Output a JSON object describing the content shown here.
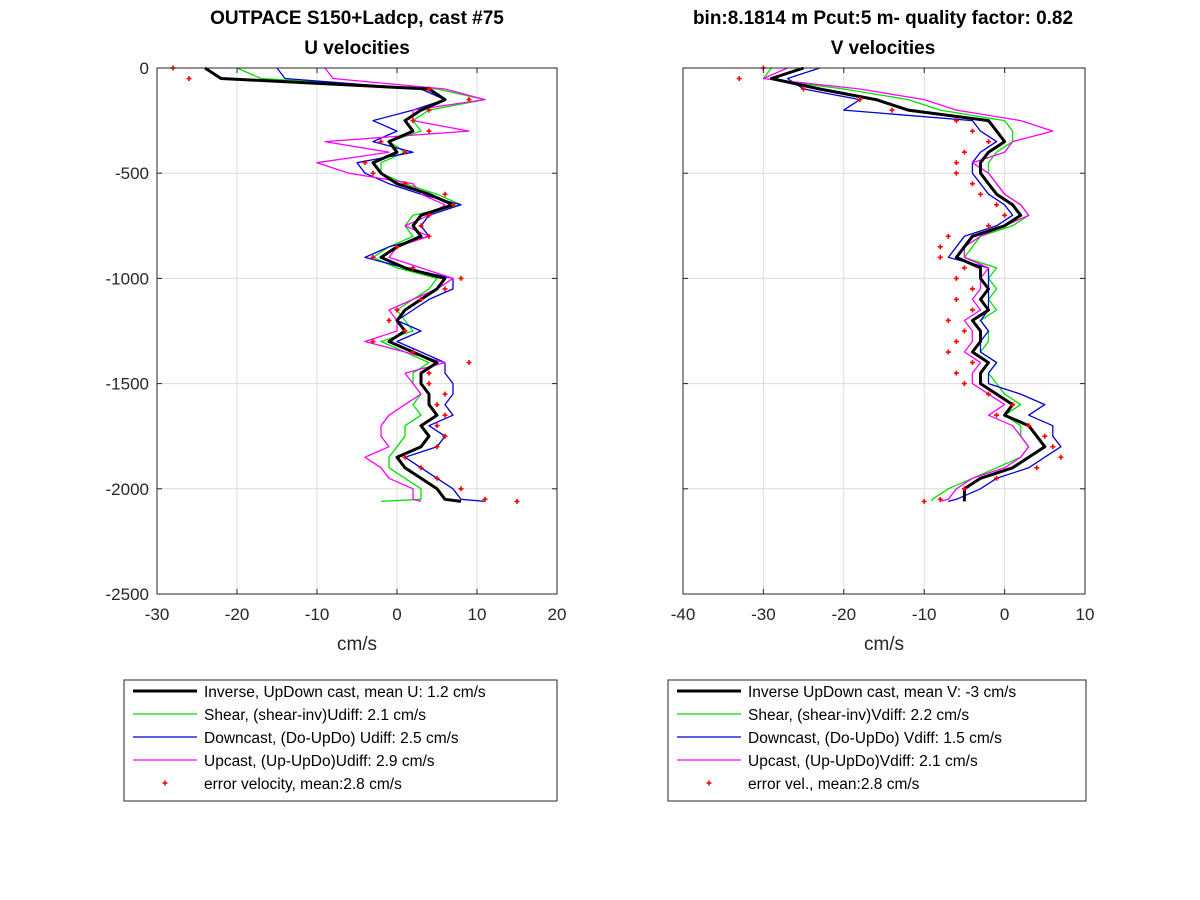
{
  "chart_data": [
    {
      "type": "line",
      "title": "OUTPACE S150+Ladcp, cast #75",
      "subtitle": "U velocities",
      "xlabel": "cm/s",
      "ylabel": "",
      "xlim": [
        -30,
        20
      ],
      "ylim": [
        -2500,
        0
      ],
      "grid": true,
      "xticks": [
        "-30",
        "-20",
        "-10",
        "0",
        "10",
        "20"
      ],
      "yticks": [
        "0",
        "-500",
        "-1000",
        "-1500",
        "-2000",
        "-2500"
      ],
      "legend_position": "below",
      "depth": [
        0,
        -50,
        -100,
        -150,
        -200,
        -250,
        -300,
        -350,
        -400,
        -450,
        -500,
        -550,
        -600,
        -650,
        -700,
        -750,
        -800,
        -850,
        -900,
        -950,
        -1000,
        -1050,
        -1100,
        -1150,
        -1200,
        -1250,
        -1300,
        -1350,
        -1400,
        -1450,
        -1500,
        -1550,
        -1600,
        -1650,
        -1700,
        -1750,
        -1800,
        -1850,
        -1900,
        -1950,
        -2000,
        -2050,
        -2060
      ],
      "series": [
        {
          "name": "Inverse, UpDown cast, mean U:  1.2 cm/s",
          "color": "#000000",
          "style": "line",
          "width": 3,
          "values": [
            -24,
            -22,
            4,
            6,
            3,
            1,
            2,
            -1,
            0,
            -3,
            -2,
            0,
            4,
            7,
            3,
            2,
            3,
            0,
            -2,
            1,
            6,
            5,
            3,
            1,
            0,
            1,
            -1,
            2,
            5,
            3,
            3,
            4,
            4,
            5,
            3,
            4,
            3,
            0,
            1,
            3,
            5,
            6,
            8
          ]
        },
        {
          "name": "Shear, (shear-inv)Udiff:  2.1 cm/s",
          "color": "#00e000",
          "style": "line",
          "width": 1.3,
          "values": [
            -20,
            -17,
            5,
            11,
            4,
            2,
            3,
            -1,
            1,
            -2,
            -2,
            1,
            5,
            8,
            2,
            1,
            2,
            -1,
            -3,
            0,
            5,
            4,
            2,
            0,
            1,
            2,
            -2,
            1,
            4,
            2,
            2,
            3,
            2,
            3,
            1,
            1,
            0,
            -1,
            -1,
            1,
            3,
            3,
            -2
          ]
        },
        {
          "name": "Downcast, (Do-UpDo) Udiff:  2.5 cm/s",
          "color": "#0000d8",
          "style": "line",
          "width": 1.3,
          "values": [
            -15,
            -14,
            3,
            6,
            2,
            -3,
            0,
            -3,
            2,
            -5,
            -4,
            -1,
            3,
            8,
            4,
            3,
            4,
            -1,
            -4,
            1,
            7,
            7,
            4,
            2,
            0,
            3,
            0,
            3,
            6,
            6,
            7,
            7,
            6,
            7,
            4,
            6,
            5,
            1,
            3,
            5,
            7,
            8,
            11
          ]
        },
        {
          "name": "Upcast, (Up-UpDo)Udiff:  2.9 cm/s",
          "color": "#ff00ff",
          "style": "line",
          "width": 1.3,
          "values": [
            -9,
            -8,
            6,
            11,
            2,
            2,
            9,
            -9,
            -1,
            -10,
            -6,
            2,
            3,
            6,
            4,
            1,
            4,
            0,
            -1,
            3,
            7,
            5,
            2,
            -1,
            0,
            0,
            -4,
            1,
            6,
            1,
            2,
            3,
            1,
            -1,
            -2,
            -2,
            -1,
            -4,
            -2,
            -1,
            2,
            2,
            3
          ]
        },
        {
          "name": "error velocity, mean:2.8 cm/s",
          "color": "#ff0000",
          "style": "markers",
          "values": [
            -28,
            -26,
            4,
            9,
            4,
            2,
            4,
            -2,
            1,
            -4,
            -3,
            1,
            6,
            7,
            4,
            3,
            4,
            0,
            -3,
            2,
            8,
            6,
            3,
            0,
            -1,
            1,
            -3,
            2,
            9,
            4,
            4,
            6,
            5,
            6,
            5,
            6,
            5,
            1,
            3,
            5,
            8,
            11,
            15
          ]
        }
      ]
    },
    {
      "type": "line",
      "title": "bin:8.1814 m  Pcut:5 m- quality factor:  0.82",
      "subtitle": "V velocities",
      "xlabel": "cm/s",
      "ylabel": "",
      "xlim": [
        -40,
        10
      ],
      "ylim": [
        -2500,
        0
      ],
      "grid": true,
      "xticks": [
        "-40",
        "-30",
        "-20",
        "-10",
        "0",
        "10"
      ],
      "yticks": [],
      "legend_position": "below",
      "depth": [
        0,
        -50,
        -100,
        -150,
        -200,
        -250,
        -300,
        -350,
        -400,
        -450,
        -500,
        -550,
        -600,
        -650,
        -700,
        -750,
        -800,
        -850,
        -900,
        -950,
        -1000,
        -1050,
        -1100,
        -1150,
        -1200,
        -1250,
        -1300,
        -1350,
        -1400,
        -1450,
        -1500,
        -1550,
        -1600,
        -1650,
        -1700,
        -1750,
        -1800,
        -1850,
        -1900,
        -1950,
        -2000,
        -2050,
        -2060
      ],
      "series": [
        {
          "name": "Inverse UpDown cast, mean V:  -3 cm/s",
          "color": "#000000",
          "style": "line",
          "width": 3,
          "values": [
            -25,
            -29,
            -23,
            -16,
            -12,
            -2,
            -1,
            0,
            -2,
            -3,
            -3,
            -2,
            -1,
            1,
            2,
            0,
            -4,
            -5,
            -6,
            -3,
            -3,
            -2,
            -3,
            -2,
            -4,
            -3,
            -3,
            -4,
            -2,
            -3,
            -3,
            -1,
            1,
            0,
            3,
            4,
            5,
            3,
            1,
            -3,
            -5,
            -5,
            -5
          ]
        },
        {
          "name": "Shear, (shear-inv)Vdiff:  2.2 cm/s",
          "color": "#00e000",
          "style": "line",
          "width": 1.3,
          "values": [
            -29,
            -30,
            -20,
            -12,
            -8,
            0,
            1,
            1,
            -1,
            -2,
            -2,
            -1,
            0,
            2,
            3,
            1,
            -3,
            -4,
            -5,
            -1,
            -2,
            -1,
            -2,
            -1,
            -3,
            -2,
            -2,
            -3,
            -1,
            -2,
            -1,
            0,
            2,
            0,
            2,
            2,
            3,
            2,
            -1,
            -4,
            -7,
            -9,
            -9
          ]
        },
        {
          "name": "Downcast, (Do-UpDo) Vdiff:  1.5 cm/s",
          "color": "#0000d8",
          "style": "line",
          "width": 1.3,
          "values": [
            -23,
            -27,
            -25,
            -18,
            -20,
            -4,
            -3,
            -1,
            -3,
            -4,
            -4,
            -3,
            -2,
            0,
            1,
            -1,
            -5,
            -6,
            -7,
            -2,
            -2,
            -2,
            -2,
            -2,
            -3,
            -2,
            -3,
            -3,
            -1,
            -2,
            -2,
            2,
            5,
            3,
            6,
            6,
            7,
            5,
            3,
            -1,
            -3,
            -6,
            -7
          ]
        },
        {
          "name": "Upcast, (Up-UpDo)Vdiff:  2.1 cm/s",
          "color": "#ff00ff",
          "style": "line",
          "width": 1.3,
          "values": [
            -27,
            -30,
            -18,
            -10,
            -6,
            2,
            6,
            1,
            0,
            -4,
            -2,
            -1,
            0,
            2,
            3,
            0,
            -3,
            -5,
            -5,
            -2,
            -3,
            -3,
            -4,
            -3,
            -5,
            -4,
            -4,
            -5,
            -3,
            -4,
            -4,
            -2,
            0,
            -2,
            1,
            2,
            3,
            2,
            0,
            -4,
            -6,
            -7,
            -8
          ]
        },
        {
          "name": "error vel., mean:2.8 cm/s",
          "color": "#ff0000",
          "style": "markers",
          "values": [
            -30,
            -33,
            -25,
            -18,
            -14,
            -6,
            -4,
            -2,
            -5,
            -6,
            -6,
            -4,
            -3,
            -1,
            0,
            -2,
            -7,
            -8,
            -8,
            -5,
            -6,
            -4,
            -6,
            -4,
            -7,
            -5,
            -6,
            -7,
            -4,
            -6,
            -5,
            -2,
            1,
            -1,
            3,
            5,
            6,
            7,
            4,
            -1,
            -5,
            -8,
            -10
          ]
        }
      ]
    }
  ]
}
